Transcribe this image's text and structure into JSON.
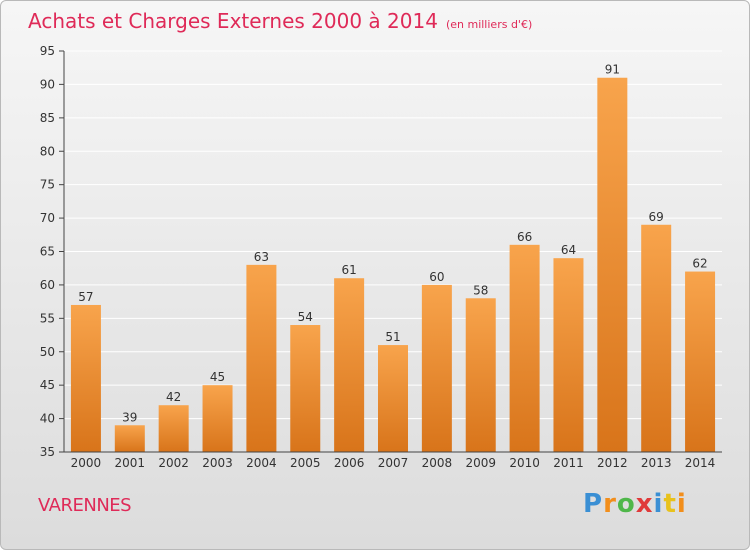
{
  "title": "Achats et Charges Externes 2000 à 2014",
  "unit": "(en milliers d'€)",
  "town": "VARENNES",
  "logo": {
    "text": "Proxiti",
    "letter_colors": [
      "#3a8fd4",
      "#f28e1b",
      "#4fb74a",
      "#e03a3a",
      "#3a8fd4",
      "#e8c21c",
      "#f28e1b"
    ]
  },
  "colors": {
    "title": "#df2a58",
    "bar_top": "#f8a44c",
    "bar_bottom": "#d8741a"
  },
  "chart_data": {
    "type": "bar",
    "categories": [
      "2000",
      "2001",
      "2002",
      "2003",
      "2004",
      "2005",
      "2006",
      "2007",
      "2008",
      "2009",
      "2010",
      "2011",
      "2012",
      "2013",
      "2014"
    ],
    "values": [
      57,
      39,
      42,
      45,
      63,
      54,
      61,
      51,
      60,
      58,
      66,
      64,
      91,
      69,
      62
    ],
    "ylim": [
      35,
      95
    ],
    "yticks": [
      35,
      40,
      45,
      50,
      55,
      60,
      65,
      70,
      75,
      80,
      85,
      90,
      95
    ],
    "grid": true
  }
}
